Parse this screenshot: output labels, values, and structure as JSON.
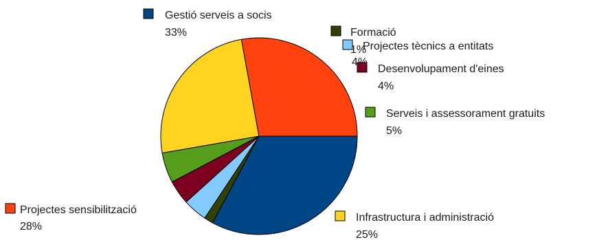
{
  "chart_data": {
    "type": "pie",
    "title": "",
    "slices": [
      {
        "label": "Gestió serveis a socis",
        "pct_label": "33%",
        "value": 33,
        "color": "#004586"
      },
      {
        "label": "Formació",
        "pct_label": "1%",
        "value": 1.5,
        "color": "#314004"
      },
      {
        "label": "Projectes tècnics a entitats",
        "pct_label": "4%",
        "value": 4,
        "color": "#83CAFF"
      },
      {
        "label": "Desenvolupament d'eines",
        "pct_label": "4%",
        "value": 4,
        "color": "#7E0021"
      },
      {
        "label": "Serveis i assessorament gratuits",
        "pct_label": "5%",
        "value": 5,
        "color": "#579D1C"
      },
      {
        "label": "Infrastructura i administració",
        "pct_label": "25%",
        "value": 25,
        "color": "#FFD320"
      },
      {
        "label": "Projectes sensibilització",
        "pct_label": "28%",
        "value": 28,
        "color": "#FF420E"
      }
    ],
    "legend": "labels-beside-slices"
  }
}
